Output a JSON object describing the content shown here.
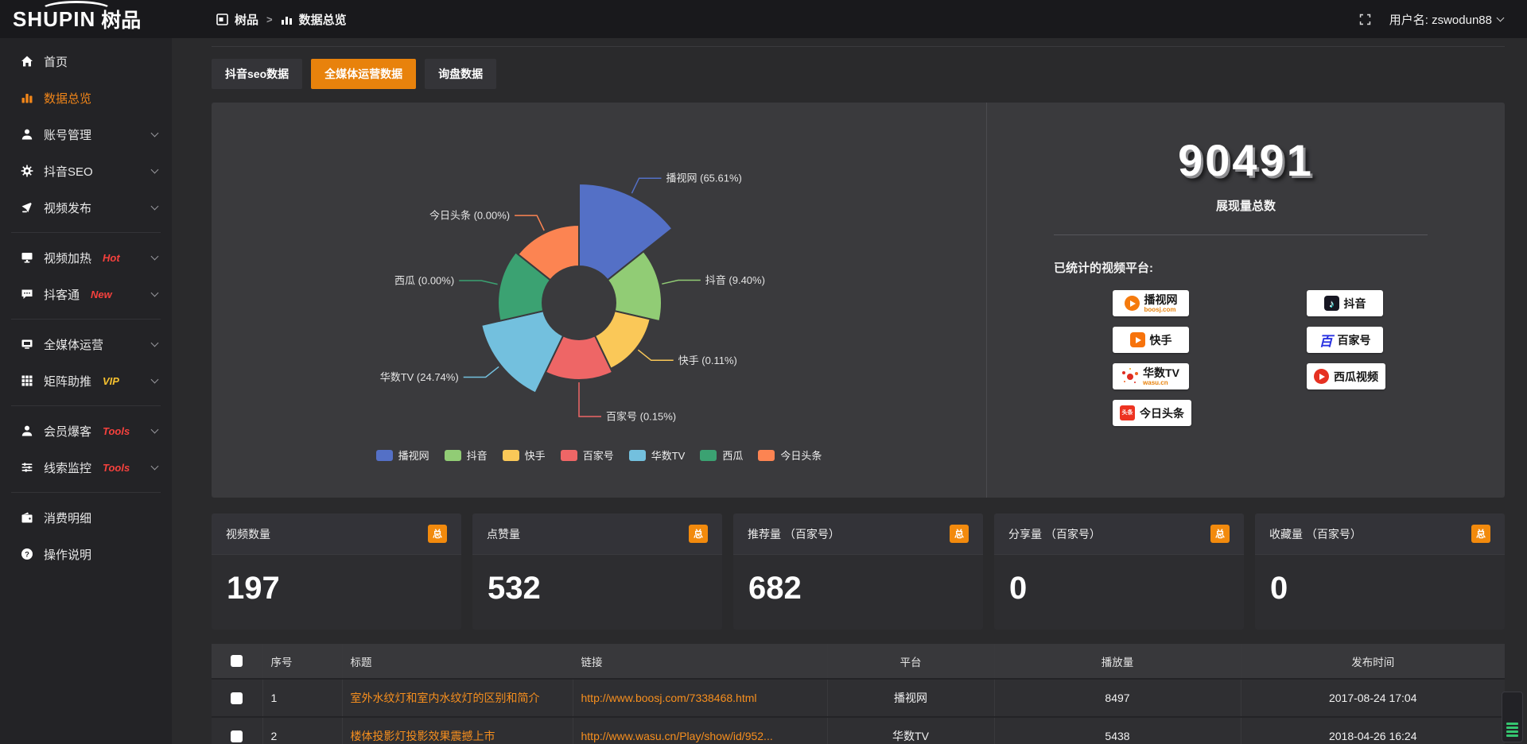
{
  "topbar": {
    "logo_main": "SHUPIN",
    "logo_cn": "树品",
    "breadcrumb_root": "树品",
    "breadcrumb_sep": ">",
    "breadcrumb_current": "数据总览",
    "username_label": "用户名: zswodun88"
  },
  "sidebar": {
    "items": [
      {
        "label": "首页",
        "icon": "home-icon"
      },
      {
        "label": "数据总览",
        "icon": "bar-chart-icon",
        "active": true
      },
      {
        "label": "账号管理",
        "icon": "user-icon",
        "expandable": true
      },
      {
        "label": "抖音SEO",
        "icon": "gear-icon",
        "expandable": true
      },
      {
        "label": "视频发布",
        "icon": "publish-icon",
        "expandable": true
      },
      {
        "label": "视频加热",
        "icon": "heat-icon",
        "badge": "Hot",
        "badge_color": "#f5413d",
        "expandable": true
      },
      {
        "label": "抖客通",
        "icon": "chat-icon",
        "badge": "New",
        "badge_color": "#f5413d",
        "expandable": true
      },
      {
        "label": "全媒体运营",
        "icon": "monitor-icon",
        "expandable": true
      },
      {
        "label": "矩阵助推",
        "icon": "grid-icon",
        "badge": "VIP",
        "badge_color": "#f6c12f",
        "expandable": true
      },
      {
        "label": "会员爆客",
        "icon": "member-icon",
        "badge": "Tools",
        "badge_color": "#f5413d",
        "expandable": true
      },
      {
        "label": "线索监控",
        "icon": "sliders-icon",
        "badge": "Tools",
        "badge_color": "#f5413d",
        "expandable": true
      },
      {
        "label": "消费明细",
        "icon": "wallet-icon"
      },
      {
        "label": "操作说明",
        "icon": "help-icon"
      }
    ]
  },
  "tabs": [
    {
      "label": "抖音seo数据",
      "active": false
    },
    {
      "label": "全媒体运营数据",
      "active": true
    },
    {
      "label": "询盘数据",
      "active": false
    }
  ],
  "chart_data": {
    "type": "pie",
    "subtype": "nightingale-rose-donut",
    "categories": [
      "播视网",
      "抖音",
      "快手",
      "百家号",
      "华数TV",
      "西瓜",
      "今日头条"
    ],
    "values": [
      65.61,
      9.4,
      0.11,
      0.15,
      24.74,
      0.0,
      0.0
    ],
    "unit": "%",
    "labels": [
      "播视网 (65.61%)",
      "抖音 (9.40%)",
      "快手 (0.11%)",
      "百家号 (0.15%)",
      "华数TV (24.74%)",
      "西瓜 (0.00%)",
      "今日头条 (0.00%)"
    ],
    "colors": [
      "#5470c6",
      "#91cc75",
      "#fac858",
      "#ee6666",
      "#73c0de",
      "#3ba272",
      "#fc8452"
    ],
    "legend": [
      "播视网",
      "抖音",
      "快手",
      "百家号",
      "华数TV",
      "西瓜",
      "今日头条"
    ],
    "legend_position": "bottom",
    "radius_px": [
      150,
      104,
      92,
      97,
      126,
      102,
      98
    ],
    "inner_radius_px": 46
  },
  "summary": {
    "total_value": "90491",
    "total_label": "展现量总数",
    "platforms_title": "已统计的视频平台:",
    "platforms": [
      {
        "name": "播视网",
        "sub": "boosj.com"
      },
      {
        "name": "抖音"
      },
      {
        "name": "快手"
      },
      {
        "name": "百家号"
      },
      {
        "name": "华数TV",
        "sub": "wasu.cn"
      },
      {
        "name": "西瓜视频"
      },
      {
        "name": "今日头条"
      }
    ],
    "toutiao_logo_text": "头条"
  },
  "stat_cards": [
    {
      "title": "视频数量",
      "badge": "总",
      "value": "197"
    },
    {
      "title": "点赞量",
      "badge": "总",
      "value": "532"
    },
    {
      "title": "推荐量 （百家号）",
      "badge": "总",
      "value": "682"
    },
    {
      "title": "分享量 （百家号）",
      "badge": "总",
      "value": "0"
    },
    {
      "title": "收藏量 （百家号）",
      "badge": "总",
      "value": "0"
    }
  ],
  "table": {
    "headers": [
      "序号",
      "标题",
      "链接",
      "平台",
      "播放量",
      "发布时间"
    ],
    "rows": [
      {
        "index": "1",
        "title": "室外水纹灯和室内水纹灯的区别和简介",
        "link": "http://www.boosj.com/7338468.html",
        "platform": "播视网",
        "plays": "8497",
        "time": "2017-08-24 17:04"
      },
      {
        "index": "2",
        "title": "楼体投影灯投影效果震撼上市",
        "link": "http://www.wasu.cn/Play/show/id/952...",
        "platform": "华数TV",
        "plays": "5438",
        "time": "2018-04-26 16:24"
      }
    ]
  },
  "colors": {
    "accent_orange": "#e8820c",
    "link_orange": "#f78f1e",
    "sidebar_active": "#f08519",
    "badge_red": "#f5413d",
    "badge_gold": "#f6c12f",
    "topbar_bg": "#19191c",
    "sidebar_bg": "#232326",
    "content_bg": "#2a2a2c",
    "panel_bg": "#3a3a3d"
  }
}
